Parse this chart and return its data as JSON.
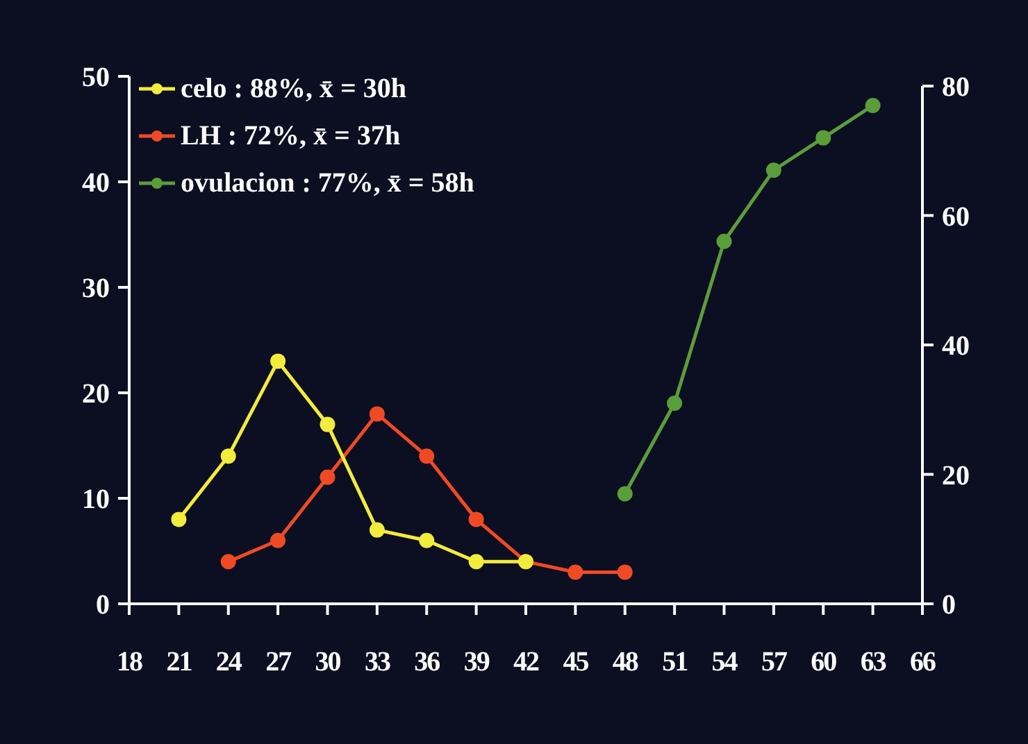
{
  "chart_data": {
    "type": "line",
    "xlim": [
      18,
      66
    ],
    "xticks": [
      18,
      21,
      24,
      27,
      30,
      33,
      36,
      39,
      42,
      45,
      48,
      51,
      54,
      57,
      60,
      63,
      66
    ],
    "ylim": [
      0,
      50
    ],
    "yticks": [
      0,
      10,
      20,
      30,
      40,
      50
    ],
    "y2lim": [
      0,
      80
    ],
    "y2ticks": [
      0,
      20,
      40,
      60,
      80
    ],
    "marker": "circle",
    "line_style": "solid",
    "grid": false,
    "legend": "top left",
    "series": [
      {
        "name": "celo : 88%, x̄ =  30h",
        "color": "#f2ec3c",
        "x": [
          21,
          24,
          27,
          30,
          33,
          36,
          39,
          42
        ],
        "values": [
          8,
          14,
          23,
          17,
          7,
          6,
          4,
          4
        ]
      },
      {
        "name": "LH : 72%, x̄ =  37h",
        "color": "#f04a25",
        "x": [
          24,
          27,
          30,
          33,
          36,
          39,
          42,
          45,
          48
        ],
        "values": [
          4,
          6,
          12,
          18,
          14,
          8,
          4,
          3,
          3
        ]
      },
      {
        "name": "ovulacion : 77%, x̄ = 58h",
        "color": "#5a9e3a",
        "axis": "y2",
        "x": [
          48,
          51,
          54,
          57,
          60,
          63
        ],
        "values": [
          17,
          31,
          56,
          67,
          72,
          77
        ]
      }
    ]
  }
}
